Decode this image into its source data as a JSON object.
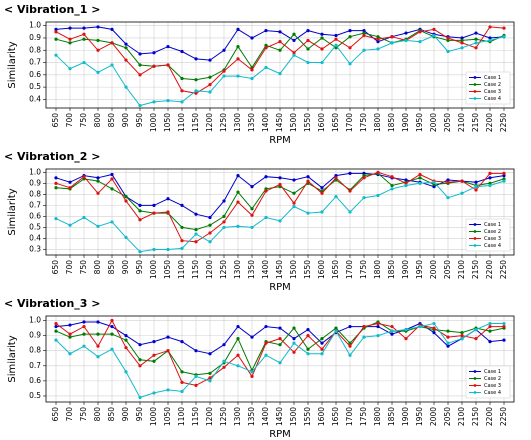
{
  "chart_data": [
    {
      "type": "line",
      "title": "< Vibration_1 >",
      "xlabel": "RPM",
      "ylabel": "Similarity",
      "categories": [
        650,
        700,
        750,
        800,
        850,
        900,
        950,
        1000,
        1050,
        1100,
        1150,
        1200,
        1250,
        1300,
        1350,
        1400,
        1450,
        1500,
        1550,
        1600,
        1650,
        1700,
        1750,
        1800,
        1850,
        1900,
        1950,
        2000,
        2050,
        2100,
        2150,
        2200,
        2250
      ],
      "ylim": [
        0.33,
        1.03
      ],
      "yticks": [
        0.4,
        0.5,
        0.6,
        0.7,
        0.8,
        0.9,
        {
          "value": 1,
          "label": "1.0"
        }
      ],
      "grid": true,
      "legend": "lower right",
      "series": [
        {
          "name": "Case 1",
          "color": "#0000cc",
          "values": [
            0.97,
            0.98,
            0.98,
            0.99,
            0.97,
            0.85,
            0.77,
            0.78,
            0.83,
            0.79,
            0.73,
            0.72,
            0.8,
            0.97,
            0.9,
            0.96,
            0.95,
            0.88,
            0.96,
            0.93,
            0.92,
            0.96,
            0.96,
            0.87,
            0.91,
            0.94,
            0.97,
            0.93,
            0.91,
            0.9,
            0.94,
            0.9,
            0.91
          ]
        },
        {
          "name": "Case 2",
          "color": "#007a00",
          "values": [
            0.89,
            0.86,
            0.89,
            0.88,
            0.86,
            0.82,
            0.68,
            0.67,
            0.68,
            0.57,
            0.56,
            0.58,
            0.64,
            0.83,
            0.66,
            0.84,
            0.8,
            0.93,
            0.81,
            0.9,
            0.82,
            0.91,
            0.94,
            0.91,
            0.86,
            0.89,
            0.96,
            0.91,
            0.88,
            0.88,
            0.89,
            0.87,
            0.92
          ]
        },
        {
          "name": "Case 3",
          "color": "#dd1111",
          "values": [
            0.95,
            0.89,
            0.93,
            0.8,
            0.86,
            0.72,
            0.6,
            0.67,
            0.68,
            0.47,
            0.45,
            0.52,
            0.63,
            0.73,
            0.64,
            0.82,
            0.87,
            0.78,
            0.88,
            0.81,
            0.89,
            0.82,
            0.92,
            0.89,
            0.91,
            0.88,
            0.95,
            0.97,
            0.9,
            0.86,
            0.82,
            0.99,
            0.98
          ]
        },
        {
          "name": "Case 4",
          "color": "#11bbcc",
          "values": [
            0.76,
            0.65,
            0.7,
            0.62,
            0.68,
            0.5,
            0.35,
            0.38,
            0.39,
            0.38,
            0.47,
            0.46,
            0.59,
            0.59,
            0.57,
            0.66,
            0.61,
            0.76,
            0.7,
            0.7,
            0.84,
            0.69,
            0.8,
            0.81,
            0.86,
            0.88,
            0.87,
            0.92,
            0.79,
            0.82,
            0.86,
            0.88,
            0.91
          ]
        }
      ]
    },
    {
      "type": "line",
      "title": "< Vibration_2 >",
      "xlabel": "RPM",
      "ylabel": "Similarity",
      "categories": [
        650,
        700,
        750,
        800,
        850,
        900,
        950,
        1000,
        1050,
        1100,
        1150,
        1200,
        1250,
        1300,
        1350,
        1400,
        1450,
        1500,
        1550,
        1600,
        1650,
        1700,
        1750,
        1800,
        1850,
        1900,
        1950,
        2000,
        2050,
        2100,
        2150,
        2200,
        2250
      ],
      "ylim": [
        0.25,
        1.03
      ],
      "yticks": [
        0.3,
        0.4,
        0.5,
        0.6,
        0.7,
        0.8,
        0.9,
        {
          "value": 1,
          "label": "1.0"
        }
      ],
      "grid": true,
      "legend": "lower right",
      "series": [
        {
          "name": "Case 1",
          "color": "#0000cc",
          "values": [
            0.95,
            0.91,
            0.97,
            0.95,
            0.98,
            0.78,
            0.7,
            0.7,
            0.76,
            0.7,
            0.62,
            0.59,
            0.74,
            0.97,
            0.87,
            0.96,
            0.95,
            0.93,
            0.96,
            0.86,
            0.97,
            0.99,
            0.99,
            0.98,
            0.95,
            0.93,
            0.91,
            0.87,
            0.93,
            0.92,
            0.91,
            0.95,
            0.97
          ]
        },
        {
          "name": "Case 2",
          "color": "#007a00",
          "values": [
            0.86,
            0.85,
            0.94,
            0.92,
            0.85,
            0.78,
            0.65,
            0.63,
            0.63,
            0.5,
            0.48,
            0.52,
            0.6,
            0.82,
            0.67,
            0.85,
            0.87,
            0.81,
            0.9,
            0.83,
            0.93,
            0.84,
            0.97,
            0.99,
            0.88,
            0.91,
            0.95,
            0.89,
            0.9,
            0.92,
            0.88,
            0.9,
            0.94
          ]
        },
        {
          "name": "Case 3",
          "color": "#dd1111",
          "values": [
            0.9,
            0.86,
            0.96,
            0.81,
            0.94,
            0.74,
            0.57,
            0.63,
            0.64,
            0.38,
            0.37,
            0.45,
            0.55,
            0.73,
            0.61,
            0.83,
            0.89,
            0.72,
            0.92,
            0.81,
            0.95,
            0.83,
            0.95,
            1.0,
            0.96,
            0.9,
            0.98,
            0.92,
            0.91,
            0.92,
            0.84,
            0.99,
            0.99
          ]
        },
        {
          "name": "Case 4",
          "color": "#11bbcc",
          "values": [
            0.58,
            0.52,
            0.59,
            0.51,
            0.55,
            0.41,
            0.28,
            0.3,
            0.3,
            0.31,
            0.44,
            0.37,
            0.5,
            0.51,
            0.5,
            0.59,
            0.56,
            0.69,
            0.63,
            0.64,
            0.78,
            0.64,
            0.77,
            0.79,
            0.85,
            0.88,
            0.9,
            0.91,
            0.77,
            0.81,
            0.87,
            0.88,
            0.92
          ]
        }
      ]
    },
    {
      "type": "line",
      "title": "< Vibration_3 >",
      "xlabel": "RPM",
      "ylabel": "Similarity",
      "categories": [
        650,
        700,
        750,
        800,
        850,
        900,
        950,
        1000,
        1050,
        1100,
        1150,
        1200,
        1250,
        1300,
        1350,
        1400,
        1450,
        1500,
        1550,
        1600,
        1650,
        1700,
        1750,
        1800,
        1850,
        1900,
        1950,
        2000,
        2050,
        2100,
        2150,
        2200,
        2250
      ],
      "ylim": [
        0.46,
        1.03
      ],
      "yticks": [
        0.5,
        0.6,
        0.7,
        0.8,
        0.9,
        {
          "value": 1,
          "label": "1.0"
        }
      ],
      "grid": true,
      "legend": "lower right",
      "series": [
        {
          "name": "Case 1",
          "color": "#0000cc",
          "values": [
            0.96,
            0.97,
            0.99,
            0.99,
            0.96,
            0.9,
            0.84,
            0.86,
            0.89,
            0.86,
            0.8,
            0.78,
            0.84,
            0.96,
            0.89,
            0.96,
            0.95,
            0.88,
            0.94,
            0.85,
            0.92,
            0.96,
            0.96,
            0.96,
            0.91,
            0.94,
            0.98,
            0.92,
            0.83,
            0.88,
            0.94,
            0.86,
            0.87
          ]
        },
        {
          "name": "Case 2",
          "color": "#007a00",
          "values": [
            0.93,
            0.89,
            0.91,
            0.91,
            0.91,
            0.87,
            0.74,
            0.73,
            0.8,
            0.66,
            0.64,
            0.65,
            0.72,
            0.88,
            0.67,
            0.86,
            0.84,
            0.95,
            0.81,
            0.88,
            0.95,
            0.85,
            0.95,
            0.99,
            0.93,
            0.93,
            0.96,
            0.94,
            0.93,
            0.92,
            0.95,
            0.93,
            0.95
          ]
        },
        {
          "name": "Case 3",
          "color": "#dd1111",
          "values": [
            0.98,
            0.91,
            0.96,
            0.83,
            1.0,
            0.82,
            0.7,
            0.77,
            0.8,
            0.59,
            0.57,
            0.62,
            0.69,
            0.77,
            0.63,
            0.85,
            0.88,
            0.79,
            0.9,
            0.81,
            0.93,
            0.83,
            0.96,
            0.98,
            0.96,
            0.88,
            0.97,
            0.95,
            0.89,
            0.9,
            0.88,
            0.96,
            0.96
          ]
        },
        {
          "name": "Case 4",
          "color": "#11bbcc",
          "values": [
            0.87,
            0.78,
            0.83,
            0.76,
            0.81,
            0.66,
            0.49,
            0.52,
            0.54,
            0.53,
            0.63,
            0.6,
            0.73,
            0.7,
            0.66,
            0.77,
            0.72,
            0.85,
            0.78,
            0.78,
            0.93,
            0.77,
            0.89,
            0.9,
            0.93,
            0.94,
            0.96,
            0.98,
            0.85,
            0.88,
            0.94,
            0.98,
            0.98
          ]
        }
      ]
    }
  ]
}
